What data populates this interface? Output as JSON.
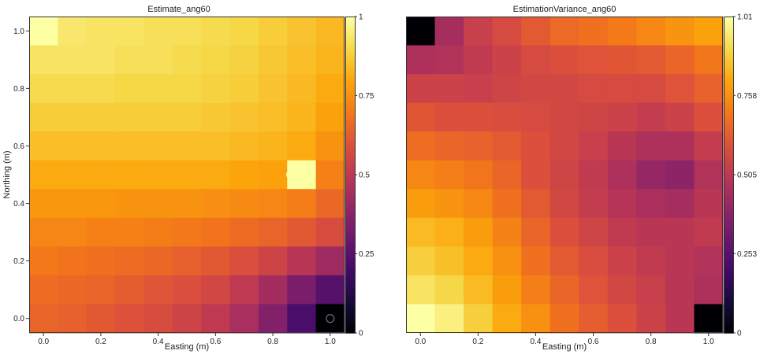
{
  "chart_data": [
    {
      "type": "heatmap",
      "title": "Estimate_ang60",
      "xlabel": "Easting (m)",
      "ylabel": "Northing (m)",
      "x": [
        0.0,
        0.1,
        0.2,
        0.3,
        0.4,
        0.5,
        0.6,
        0.7,
        0.8,
        0.9,
        1.0
      ],
      "y": [
        1.0,
        0.9,
        0.8,
        0.7,
        0.6,
        0.5,
        0.4,
        0.3,
        0.2,
        0.1,
        0.0
      ],
      "xlim": [
        -0.05,
        1.05
      ],
      "ylim": [
        -0.05,
        1.05
      ],
      "x_ticks": [
        "0.0",
        "0.2",
        "0.4",
        "0.6",
        "0.8",
        "1.0"
      ],
      "y_ticks": [
        "0.0",
        "0.2",
        "0.4",
        "0.6",
        "0.8",
        "1.0"
      ],
      "colormap": "inferno",
      "colorbar_range": [
        0,
        1
      ],
      "colorbar_ticks": [
        "0",
        "0.25",
        "0.5",
        "0.75",
        "1"
      ],
      "values": [
        [
          1.0,
          0.94,
          0.93,
          0.93,
          0.92,
          0.92,
          0.91,
          0.9,
          0.88,
          0.86,
          0.84
        ],
        [
          0.93,
          0.93,
          0.93,
          0.92,
          0.92,
          0.91,
          0.9,
          0.89,
          0.87,
          0.85,
          0.83
        ],
        [
          0.91,
          0.91,
          0.91,
          0.9,
          0.9,
          0.9,
          0.89,
          0.88,
          0.86,
          0.84,
          0.81
        ],
        [
          0.88,
          0.88,
          0.88,
          0.88,
          0.88,
          0.88,
          0.87,
          0.86,
          0.85,
          0.83,
          0.79
        ],
        [
          0.85,
          0.85,
          0.85,
          0.85,
          0.85,
          0.85,
          0.85,
          0.84,
          0.83,
          0.81,
          0.76
        ],
        [
          0.81,
          0.81,
          0.81,
          0.81,
          0.81,
          0.81,
          0.81,
          0.8,
          0.79,
          1.0,
          0.72
        ],
        [
          0.77,
          0.77,
          0.77,
          0.76,
          0.76,
          0.76,
          0.75,
          0.74,
          0.73,
          0.71,
          0.66
        ],
        [
          0.73,
          0.73,
          0.72,
          0.72,
          0.71,
          0.7,
          0.69,
          0.67,
          0.65,
          0.62,
          0.58
        ],
        [
          0.7,
          0.69,
          0.68,
          0.67,
          0.66,
          0.64,
          0.62,
          0.59,
          0.55,
          0.49,
          0.43
        ],
        [
          0.67,
          0.66,
          0.65,
          0.63,
          0.61,
          0.59,
          0.56,
          0.51,
          0.44,
          0.34,
          0.25
        ],
        [
          0.65,
          0.64,
          0.62,
          0.6,
          0.58,
          0.55,
          0.51,
          0.45,
          0.36,
          0.22,
          0.0
        ]
      ],
      "data_points": [
        {
          "x": 0.86,
          "y": 0.5,
          "marker": "filled"
        },
        {
          "x": 1.0,
          "y": 0.0,
          "marker": "hollow"
        }
      ]
    },
    {
      "type": "heatmap",
      "title": "EstimationVariance_ang60",
      "xlabel": "Easting (m)",
      "ylabel": "",
      "x": [
        0.0,
        0.1,
        0.2,
        0.3,
        0.4,
        0.5,
        0.6,
        0.7,
        0.8,
        0.9,
        1.0
      ],
      "y": [
        1.0,
        0.9,
        0.8,
        0.7,
        0.6,
        0.5,
        0.4,
        0.3,
        0.2,
        0.1,
        0.0
      ],
      "xlim": [
        -0.05,
        1.05
      ],
      "ylim": [
        -0.05,
        1.05
      ],
      "x_ticks": [
        "0.0",
        "0.2",
        "0.4",
        "0.6",
        "0.8",
        "1.0"
      ],
      "colormap": "inferno",
      "colorbar_range": [
        0,
        1.01
      ],
      "colorbar_ticks": [
        "0",
        "0.253",
        "0.505",
        "0.758",
        "1.01"
      ],
      "values": [
        [
          0.0,
          0.45,
          0.54,
          0.58,
          0.63,
          0.67,
          0.69,
          0.71,
          0.74,
          0.77,
          0.8
        ],
        [
          0.47,
          0.48,
          0.52,
          0.55,
          0.58,
          0.6,
          0.61,
          0.62,
          0.63,
          0.66,
          0.7
        ],
        [
          0.55,
          0.55,
          0.54,
          0.56,
          0.57,
          0.57,
          0.58,
          0.58,
          0.58,
          0.61,
          0.65
        ],
        [
          0.62,
          0.6,
          0.6,
          0.59,
          0.58,
          0.57,
          0.56,
          0.55,
          0.53,
          0.55,
          0.6
        ],
        [
          0.68,
          0.66,
          0.65,
          0.63,
          0.6,
          0.57,
          0.54,
          0.5,
          0.47,
          0.47,
          0.53
        ],
        [
          0.74,
          0.72,
          0.7,
          0.66,
          0.6,
          0.56,
          0.52,
          0.47,
          0.41,
          0.39,
          0.48
        ],
        [
          0.79,
          0.77,
          0.74,
          0.69,
          0.63,
          0.57,
          0.53,
          0.49,
          0.46,
          0.45,
          0.5
        ],
        [
          0.85,
          0.83,
          0.79,
          0.73,
          0.66,
          0.6,
          0.56,
          0.52,
          0.5,
          0.5,
          0.52
        ],
        [
          0.89,
          0.86,
          0.82,
          0.76,
          0.69,
          0.63,
          0.59,
          0.55,
          0.52,
          0.5,
          0.48
        ],
        [
          0.94,
          0.91,
          0.85,
          0.79,
          0.72,
          0.66,
          0.61,
          0.57,
          0.54,
          0.5,
          0.47
        ],
        [
          1.01,
          0.97,
          0.89,
          0.82,
          0.76,
          0.69,
          0.64,
          0.6,
          0.55,
          0.5,
          0.0
        ]
      ]
    }
  ]
}
